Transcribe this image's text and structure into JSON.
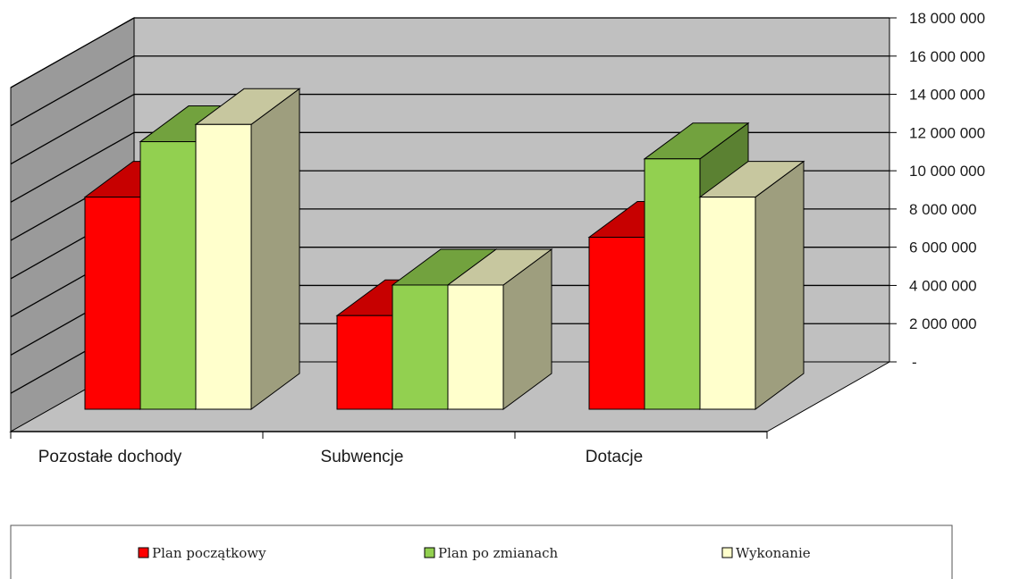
{
  "chart_data": {
    "type": "bar",
    "style": "3d-clustered-column",
    "categories": [
      "Pozostałe dochody",
      "Subwencje",
      "Dotacje"
    ],
    "series": [
      {
        "name": "Plan początkowy",
        "values": [
          11100000,
          4900000,
          9000000
        ],
        "color": "#ff0000"
      },
      {
        "name": "Plan po zmianach",
        "values": [
          14000000,
          6500000,
          13100000
        ],
        "color": "#92d050"
      },
      {
        "name": "Wykonanie",
        "values": [
          14900000,
          6500000,
          11100000
        ],
        "color": "#ffffcc"
      }
    ],
    "y_ticks": [
      "-",
      "2 000 000",
      "4 000 000",
      "6 000 000",
      "8 000 000",
      "10 000 000",
      "12 000 000",
      "14 000 000",
      "16 000 000",
      "18 000 000"
    ],
    "ylim": [
      0,
      18000000
    ],
    "grid": true,
    "legend_position": "bottom",
    "colors": {
      "wall": "#c0c0c0",
      "floor": "#c0c0c0",
      "grid": "#000000"
    }
  }
}
